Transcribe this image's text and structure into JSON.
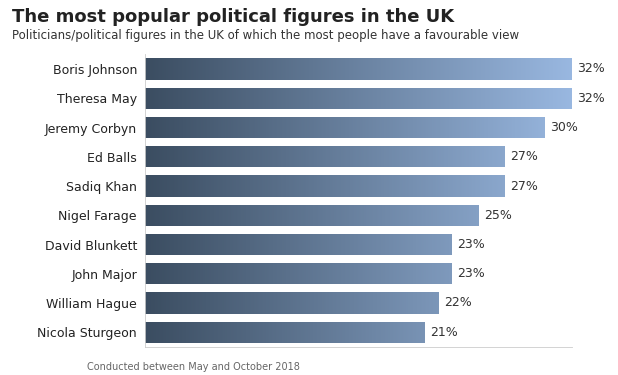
{
  "chart_data": {
    "type": "bar",
    "orientation": "horizontal",
    "title": "The most popular political figures in the UK",
    "subtitle": "Politicians/political figures in the UK of which the most people have a favourable view",
    "categories": [
      "Boris Johnson",
      "Theresa May",
      "Jeremy Corbyn",
      "Ed Balls",
      "Sadiq Khan",
      "Nigel Farage",
      "David Blunkett",
      "John Major",
      "William Hague",
      "Nicola Sturgeon"
    ],
    "values": [
      32,
      32,
      30,
      27,
      27,
      25,
      23,
      23,
      22,
      21
    ],
    "value_labels": [
      "32%",
      "32%",
      "30%",
      "27%",
      "27%",
      "25%",
      "23%",
      "23%",
      "22%",
      "21%"
    ],
    "data_labels": true,
    "tick_labels": "y",
    "xlim": [
      0,
      32
    ],
    "color": "#3b4d61",
    "note": "Conducted between May and October 2018"
  }
}
